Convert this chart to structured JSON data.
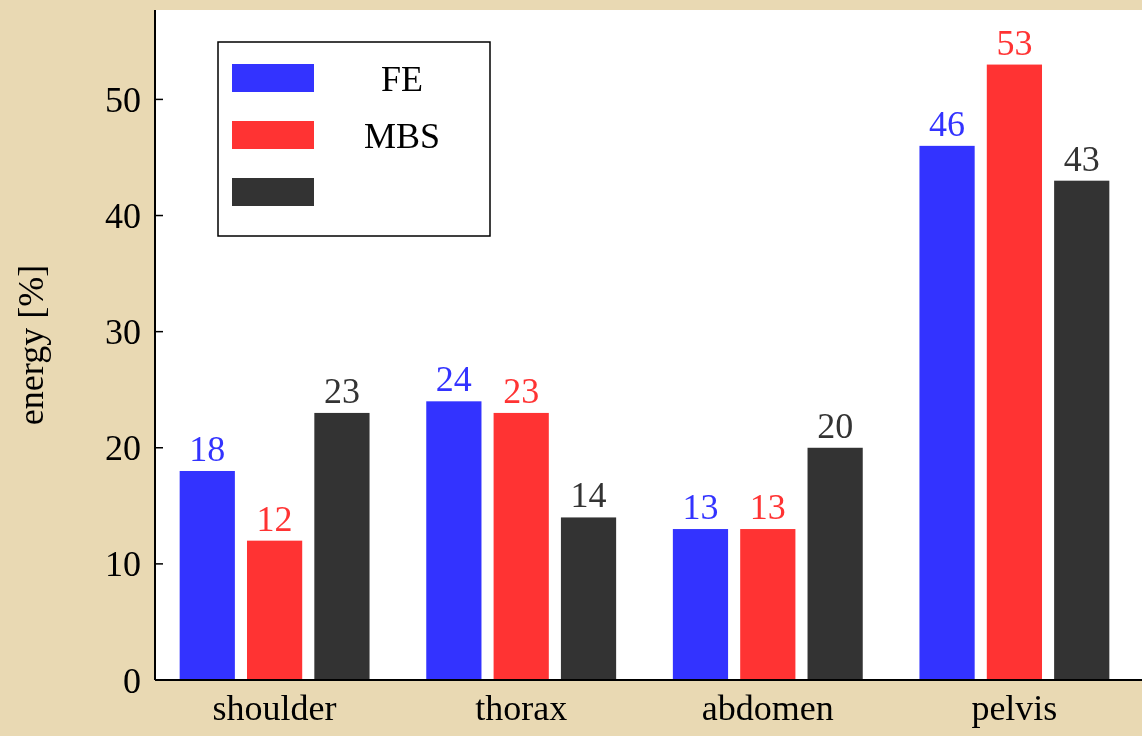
{
  "chart_data": {
    "type": "bar",
    "ylabel": "energy [%]",
    "categories": [
      "shoulder",
      "thorax",
      "abdomen",
      "pelvis"
    ],
    "series": [
      {
        "name": "FE",
        "color": "#3333ff",
        "values": [
          18,
          24,
          13,
          46
        ]
      },
      {
        "name": "MBS",
        "color": "#ff3333",
        "values": [
          12,
          23,
          13,
          53
        ]
      },
      {
        "color": "#333333",
        "values": [
          23,
          14,
          20,
          43
        ]
      }
    ],
    "ylim": [
      0,
      57.7
    ],
    "yticks": [
      0,
      10,
      20,
      30,
      40,
      50
    ],
    "data_labels": true,
    "legend": "top left",
    "grid": false
  }
}
